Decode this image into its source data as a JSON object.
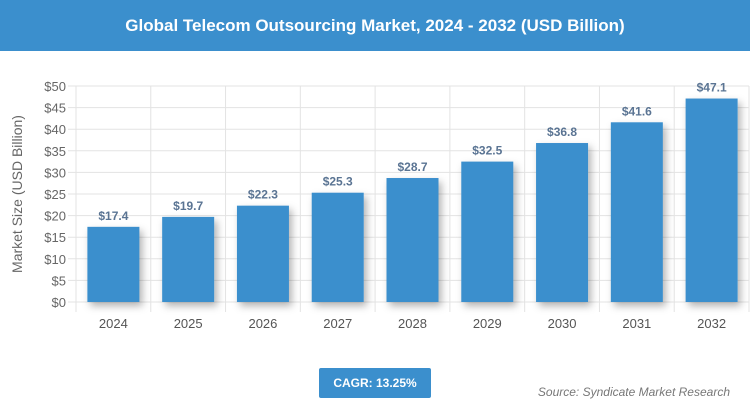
{
  "chart_data": {
    "type": "bar",
    "title": "Global Telecom Outsourcing Market, 2024 - 2032 (USD Billion)",
    "ylabel": "Market Size (USD Billion)",
    "xlabel": "",
    "categories": [
      "2024",
      "2025",
      "2026",
      "2027",
      "2028",
      "2029",
      "2030",
      "2031",
      "2032"
    ],
    "values": [
      17.4,
      19.7,
      22.3,
      25.3,
      28.7,
      32.5,
      36.8,
      41.6,
      47.1
    ],
    "data_labels": [
      "$17.4",
      "$19.7",
      "$22.3",
      "$25.3",
      "$28.7",
      "$32.5",
      "$36.8",
      "$41.6",
      "$47.1"
    ],
    "yticks": [
      "$0",
      "$5",
      "$10",
      "$15",
      "$20",
      "$25",
      "$30",
      "$35",
      "$40",
      "$45",
      "$50"
    ],
    "ylim": [
      0,
      50
    ],
    "grid": true,
    "bar_color": "#3b8fcd",
    "label_color": "#5a7493"
  },
  "cagr": "CAGR: 13.25%",
  "source": "Source: Syndicate Market Research"
}
